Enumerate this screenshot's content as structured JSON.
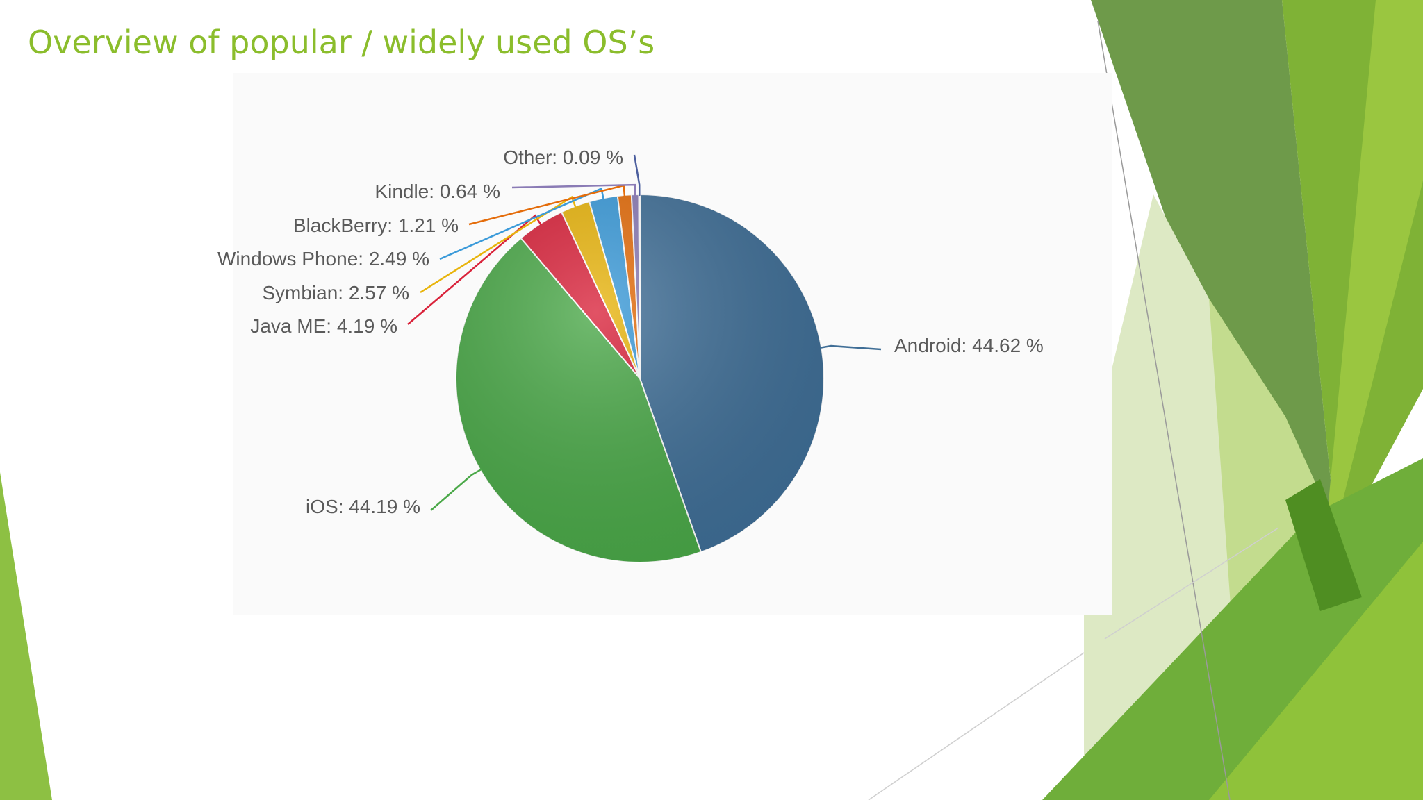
{
  "slide": {
    "title": "Overview of popular / widely used OS’s"
  },
  "theme": {
    "title_color": "#8bbd2c",
    "decoration_colors": [
      "#6e9a4a",
      "#7fb236",
      "#5d9a2c",
      "#9ac640",
      "#dde9c4"
    ]
  },
  "chart_data": {
    "type": "pie",
    "title": "",
    "slices": [
      {
        "name": "Android",
        "value": 44.62,
        "color": "#3f6e96",
        "label": "Android: 44.62 %"
      },
      {
        "name": "iOS",
        "value": 44.19,
        "color": "#4aa848",
        "label": "iOS: 44.19 %"
      },
      {
        "name": "Java ME",
        "value": 4.19,
        "color": "#d9223a",
        "label": "Java ME: 4.19 %"
      },
      {
        "name": "Symbian",
        "value": 2.57,
        "color": "#e8b40c",
        "label": "Symbian: 2.57 %"
      },
      {
        "name": "Windows Phone",
        "value": 2.49,
        "color": "#3a9ad9",
        "label": "Windows Phone: 2.49 %"
      },
      {
        "name": "BlackBerry",
        "value": 1.21,
        "color": "#e46c0a",
        "label": "BlackBerry: 1.21 %"
      },
      {
        "name": "Kindle",
        "value": 0.64,
        "color": "#8a7bb5",
        "label": "Kindle: 0.64 %"
      },
      {
        "name": "Other",
        "value": 0.09,
        "color": "#4c5f9e",
        "label": "Other: 0.09 %"
      }
    ]
  }
}
